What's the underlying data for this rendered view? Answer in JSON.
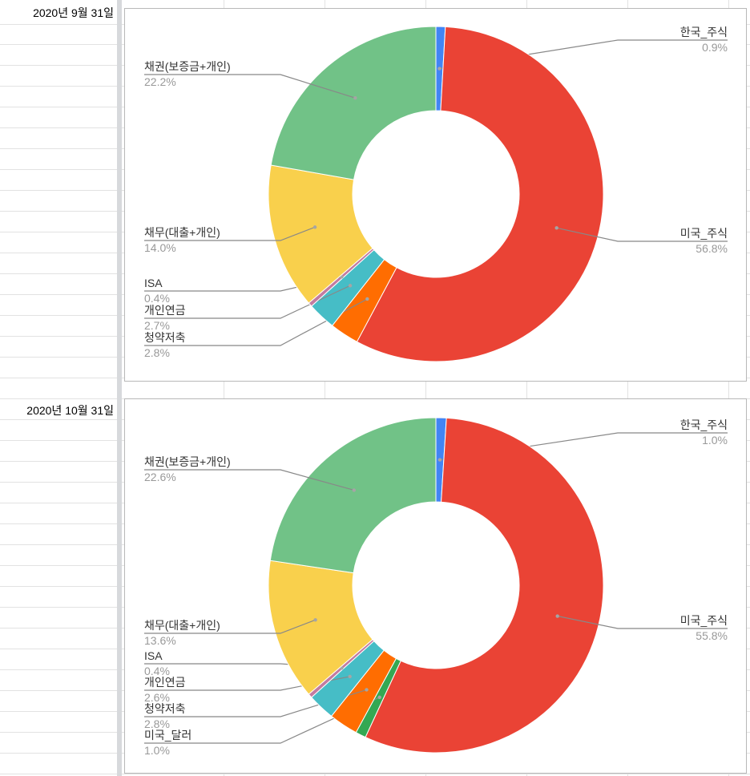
{
  "sheet": {
    "row_labels": [
      "2020년 9월 31일",
      "2020년 10월 31일"
    ]
  },
  "chart_data": [
    {
      "type": "pie",
      "style": "donut",
      "title": "",
      "legend": "labeled-slices",
      "slices": [
        {
          "label": "한국_주식",
          "pct_label": "0.9%",
          "value": 0.9,
          "color": "#4285f4"
        },
        {
          "label": "미국_주식",
          "pct_label": "56.8%",
          "value": 56.8,
          "color": "#ea4335"
        },
        {
          "label": "청약저축",
          "pct_label": "2.8%",
          "value": 2.8,
          "color": "#ff6d01"
        },
        {
          "label": "개인연금",
          "pct_label": "2.7%",
          "value": 2.7,
          "color": "#46bdc6"
        },
        {
          "label": "ISA",
          "pct_label": "0.4%",
          "value": 0.4,
          "color": "#c27ba0"
        },
        {
          "label": "채무(대출+개인)",
          "pct_label": "14.0%",
          "value": 14.0,
          "color": "#f9d04c"
        },
        {
          "label": "채권(보증금+개인)",
          "pct_label": "22.2%",
          "value": 22.2,
          "color": "#71c287"
        }
      ]
    },
    {
      "type": "pie",
      "style": "donut",
      "title": "",
      "legend": "labeled-slices",
      "slices": [
        {
          "label": "한국_주식",
          "pct_label": "1.0%",
          "value": 1.0,
          "color": "#4285f4"
        },
        {
          "label": "미국_주식",
          "pct_label": "55.8%",
          "value": 55.8,
          "color": "#ea4335"
        },
        {
          "label": "미국_달러",
          "pct_label": "1.0%",
          "value": 1.0,
          "color": "#34a853"
        },
        {
          "label": "청약저축",
          "pct_label": "2.8%",
          "value": 2.8,
          "color": "#ff6d01"
        },
        {
          "label": "개인연금",
          "pct_label": "2.6%",
          "value": 2.6,
          "color": "#46bdc6"
        },
        {
          "label": "ISA",
          "pct_label": "0.4%",
          "value": 0.4,
          "color": "#c27ba0"
        },
        {
          "label": "채무(대출+개인)",
          "pct_label": "13.6%",
          "value": 13.6,
          "color": "#f9d04c"
        },
        {
          "label": "채권(보증금+개인)",
          "pct_label": "22.6%",
          "value": 22.6,
          "color": "#71c287"
        }
      ]
    }
  ]
}
